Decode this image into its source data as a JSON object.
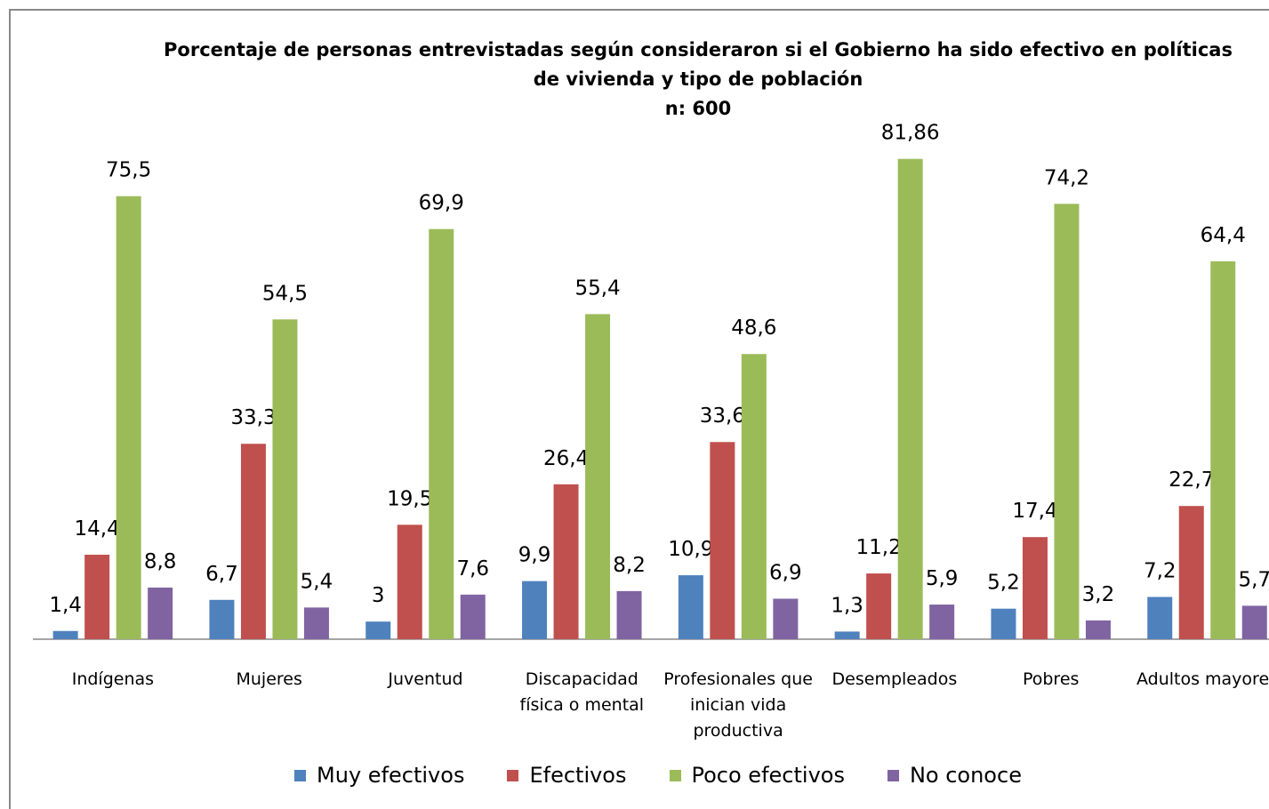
{
  "chart_data": {
    "type": "bar",
    "title": "Porcentaje de personas entrevistadas según consideraron si el Gobierno ha sido efectivo en políticas de vivienda  y tipo de población",
    "subtitle": "n: 600",
    "categories": [
      "Indígenas",
      "Mujeres",
      "Juventud",
      "Discapacidad física o mental",
      "Profesionales que inician vida productiva",
      "Desempleados",
      "Pobres",
      "Adultos mayores"
    ],
    "series": [
      {
        "name": "Muy efectivos",
        "color": "#4f81bd",
        "values": [
          1.4,
          6.7,
          3,
          9.9,
          10.9,
          1.3,
          5.2,
          7.2
        ],
        "value_labels": [
          "1,4",
          "6,7",
          "3",
          "9,9",
          "10,9",
          "1,3",
          "5,2",
          "7,2"
        ]
      },
      {
        "name": "Efectivos",
        "color": "#c0504d",
        "values": [
          14.4,
          33.3,
          19.5,
          26.4,
          33.6,
          11.2,
          17.4,
          22.7
        ],
        "value_labels": [
          "14,4",
          "33,3",
          "19,5",
          "26,4",
          "33,6",
          "11,2",
          "17,4",
          "22,7"
        ]
      },
      {
        "name": "Poco efectivos",
        "color": "#9bbb59",
        "values": [
          75.5,
          54.5,
          69.9,
          55.4,
          48.6,
          81.86,
          74.2,
          64.4
        ],
        "value_labels": [
          "75,5",
          "54,5",
          "69,9",
          "55,4",
          "48,6",
          "81,86",
          "74,2",
          "64,4"
        ]
      },
      {
        "name": "No conoce",
        "color": "#8064a2",
        "values": [
          8.8,
          5.4,
          7.6,
          8.2,
          6.9,
          5.9,
          3.2,
          5.7
        ],
        "value_labels": [
          "8,8",
          "5,4",
          "7,6",
          "8,2",
          "6,9",
          "5,9",
          "3,2",
          "5,7"
        ]
      }
    ],
    "legend": "bottom"
  }
}
